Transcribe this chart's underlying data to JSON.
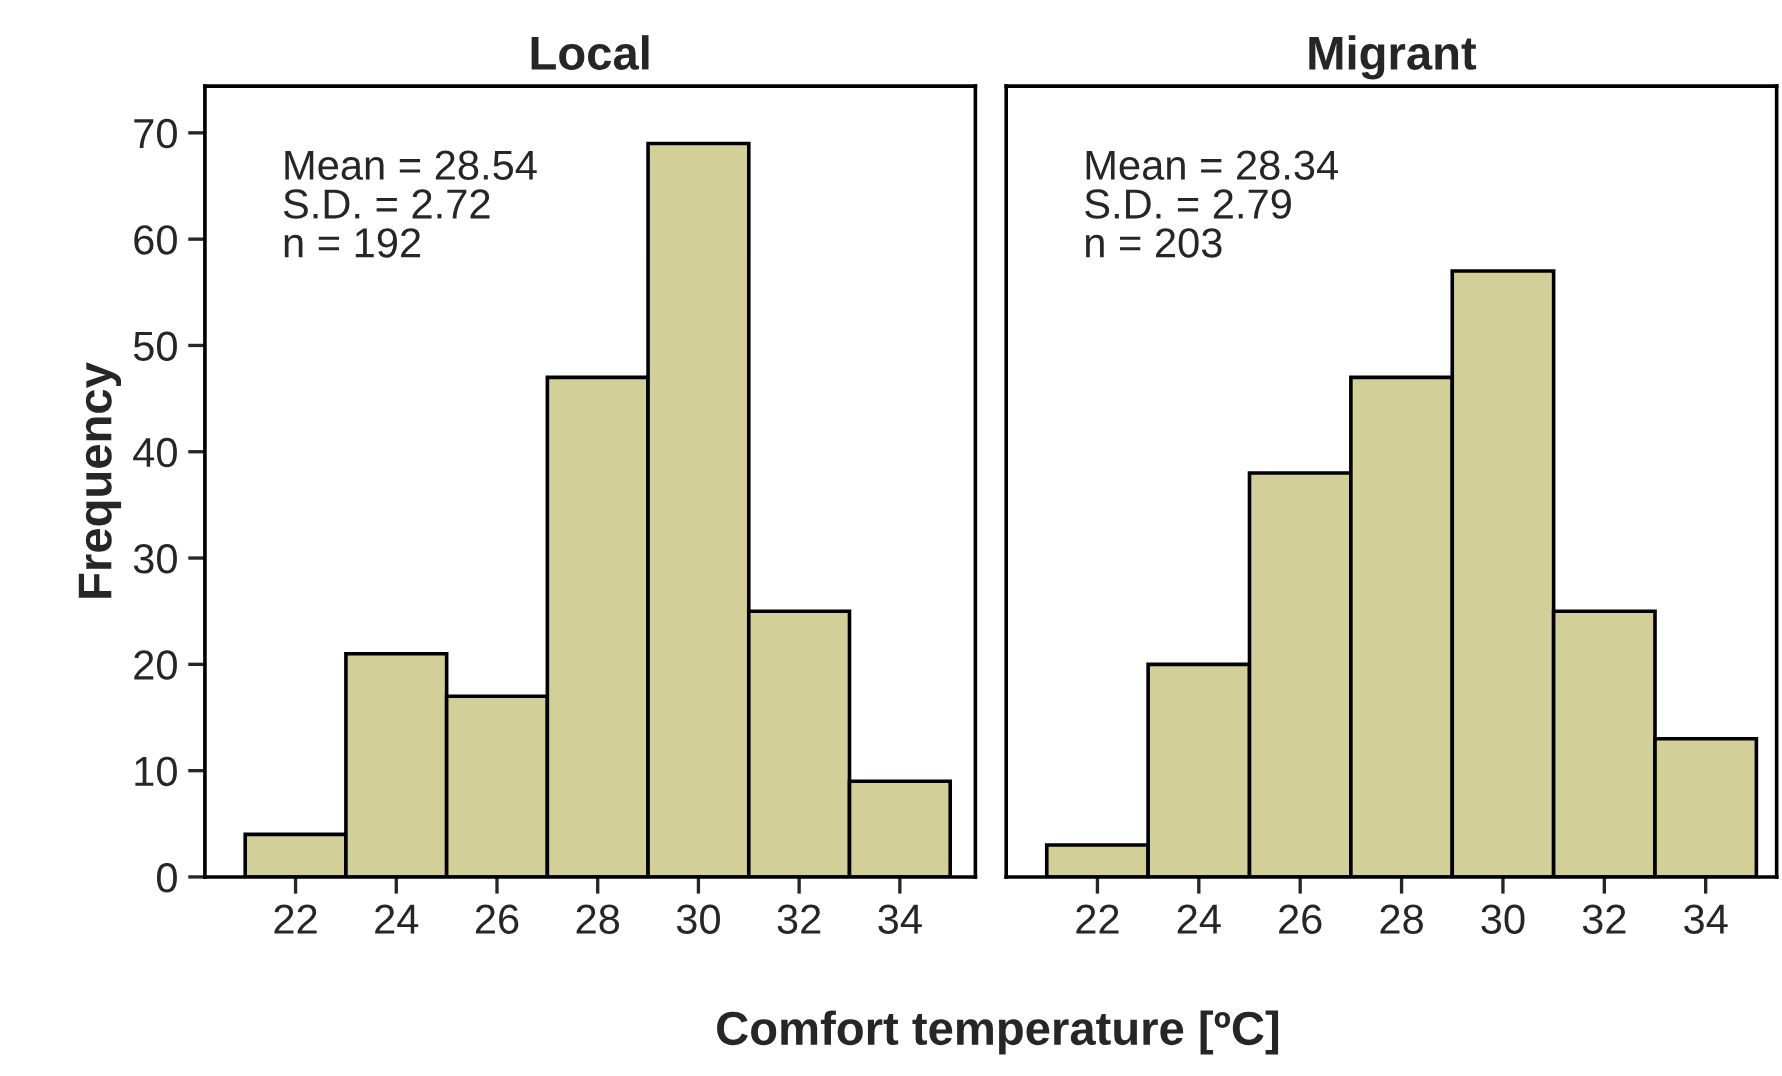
{
  "chart_data": [
    {
      "type": "histogram",
      "title": "Local",
      "ylabel": "Frequency",
      "xlabel": "Comfort temperature [ºC]",
      "bins": [
        21,
        23,
        25,
        27,
        29,
        31,
        33,
        35
      ],
      "values": [
        4,
        21,
        17,
        47,
        69,
        25,
        9
      ],
      "color": "#d3cf98",
      "xlim": [
        20.2,
        35.5
      ],
      "xticks": [
        22,
        24,
        26,
        28,
        30,
        32,
        34
      ],
      "ylim": [
        0,
        74.4
      ],
      "yticks": [
        0,
        10,
        20,
        30,
        40,
        50,
        60,
        70
      ],
      "annotations": [
        "Mean = 28.54\nS.D. = 2.72\nn = 192"
      ]
    },
    {
      "type": "histogram",
      "title": "Migrant",
      "bins": [
        21,
        23,
        25,
        27,
        29,
        31,
        33,
        35
      ],
      "values": [
        3,
        20,
        38,
        47,
        57,
        25,
        13
      ],
      "color": "#d3cf98",
      "xlim": [
        20.2,
        35.4
      ],
      "xticks": [
        22,
        24,
        26,
        28,
        30,
        32,
        34
      ],
      "ylim": [
        0,
        74.4
      ],
      "yticks": [
        0,
        10,
        20,
        30,
        40,
        50,
        60,
        70
      ],
      "tick_labels": "x",
      "annotations": [
        "Mean = 28.34\nS.D. = 2.79\nn = 203"
      ]
    }
  ]
}
